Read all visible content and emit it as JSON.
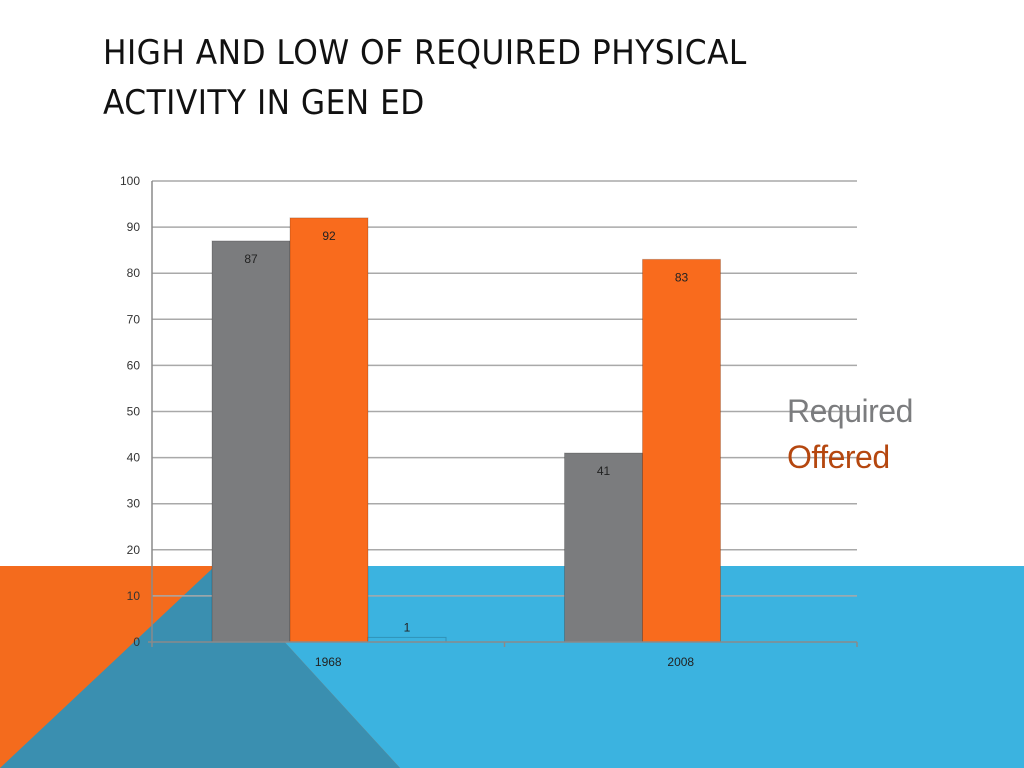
{
  "slide": {
    "title_line1": "HIGH AND LOW OF REQUIRED PHYSICAL",
    "title_line2": "ACTIVITY IN GEN ED"
  },
  "colors": {
    "required": "#7b7c7e",
    "offered": "#f96b1d",
    "third_series": "#3bb3e0",
    "background_orange": "#f46b1d",
    "background_blue": "#3bb3e0",
    "background_triangle": "#3a8fb0"
  },
  "chart_data": {
    "type": "bar",
    "categories": [
      "1968",
      "2008"
    ],
    "series": [
      {
        "name": "Required",
        "values": [
          87,
          41
        ],
        "color": "#7b7c7e"
      },
      {
        "name": "Offered",
        "values": [
          92,
          83
        ],
        "color": "#f96b1d"
      },
      {
        "values": [
          1,
          null
        ],
        "color": "#3bb3e0"
      }
    ],
    "ylim": [
      0,
      100
    ],
    "yticks": [
      0,
      10,
      20,
      30,
      40,
      50,
      60,
      70,
      80,
      90,
      100
    ],
    "grid": true,
    "data_labels": true,
    "legend": {
      "placement": "right",
      "entries": [
        {
          "label": "Required",
          "color": "#7b7c7e"
        },
        {
          "label": "Offered",
          "color": "#b5470f"
        }
      ]
    }
  }
}
